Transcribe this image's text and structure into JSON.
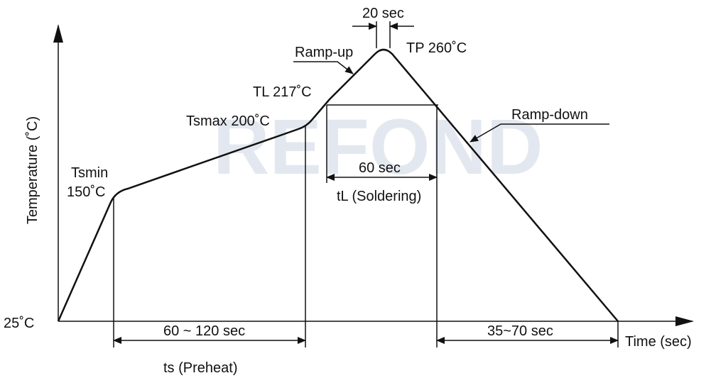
{
  "watermark": "REFOND",
  "axes": {
    "y_label": "Temperature (˚C)",
    "x_label": "Time (sec)",
    "origin": "25˚C"
  },
  "points": {
    "tsmin": "Tsmin",
    "tsmin_temp": "150˚C",
    "tsmax": "Tsmax 200˚C",
    "tl": "TL 217˚C",
    "tp": "TP 260˚C"
  },
  "annotations": {
    "ramp_up": "Ramp-up",
    "ramp_down": "Ramp-down",
    "peak_time": "20 sec",
    "liquidus_time": "60 sec",
    "liquidus_label": "tL (Soldering)",
    "preheat_time": "60 ~ 120 sec",
    "preheat_label": "ts (Preheat)",
    "cool_time": "35~70 sec"
  }
}
